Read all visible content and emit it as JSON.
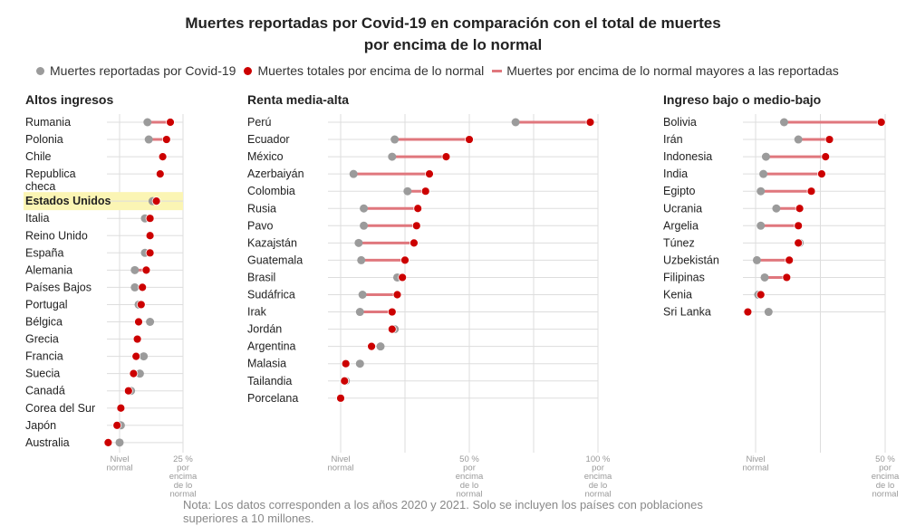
{
  "title_line1": "Muertes reportadas por Covid-19 en comparación con el total de muertes",
  "title_line2": "por encima de lo normal",
  "legend": {
    "reported": "Muertes reportadas por Covid-19",
    "excess": "Muertes totales por encima de lo normal",
    "gap": "Muertes por encima de lo normal mayores a las reportadas"
  },
  "colors": {
    "reported": "#9b9b9b",
    "excess": "#cc0000",
    "gap": "#e0777d",
    "grid": "#dddddd",
    "highlight": "#fbf5b4"
  },
  "note_line1": "Nota: Los datos corresponden a los años 2020 y 2021. Solo se incluyen los países con poblaciones",
  "note_line2": "superiores a 10 millones.",
  "chart_data": [
    {
      "type": "dot-plot",
      "title": "Altos ingresos",
      "unit": "% por encima de lo normal",
      "xlim": [
        -5,
        25
      ],
      "ticks": [
        {
          "value": 0,
          "label": "Nivel normal"
        },
        {
          "value": 25,
          "label": "25 % por encima de lo normal"
        }
      ],
      "highlight": "Estados Unidos",
      "rows": [
        {
          "country": "Rumania",
          "reported": 11,
          "excess": 20
        },
        {
          "country": "Polonia",
          "reported": 11.5,
          "excess": 18.5
        },
        {
          "country": "Chile",
          "reported": 17,
          "excess": 17
        },
        {
          "country": "Republica checa",
          "reported": 16,
          "excess": 16
        },
        {
          "country": "Estados Unidos",
          "reported": 13,
          "excess": 14.5
        },
        {
          "country": "Italia",
          "reported": 10,
          "excess": 12
        },
        {
          "country": "Reino Unido",
          "reported": 12,
          "excess": 12
        },
        {
          "country": "España",
          "reported": 10,
          "excess": 12
        },
        {
          "country": "Alemania",
          "reported": 6,
          "excess": 10.5
        },
        {
          "country": "Países Bajos",
          "reported": 6,
          "excess": 9
        },
        {
          "country": "Portugal",
          "reported": 7.5,
          "excess": 8.5
        },
        {
          "country": "Bélgica",
          "reported": 12,
          "excess": 7.5
        },
        {
          "country": "Grecia",
          "reported": 7,
          "excess": 7
        },
        {
          "country": "Francia",
          "reported": 9.5,
          "excess": 6.5
        },
        {
          "country": "Suecia",
          "reported": 8,
          "excess": 5.5
        },
        {
          "country": "Canadá",
          "reported": 4.5,
          "excess": 3.5
        },
        {
          "country": "Corea del Sur",
          "reported": 0.5,
          "excess": 0.5
        },
        {
          "country": "Japón",
          "reported": 0.5,
          "excess": -1
        },
        {
          "country": "Australia",
          "reported": 0,
          "excess": -4.5
        }
      ]
    },
    {
      "type": "dot-plot",
      "title": "Renta media-alta",
      "unit": "% por encima de lo normal",
      "xlim": [
        0,
        100
      ],
      "ticks": [
        {
          "value": 0,
          "label": "Nivel normal"
        },
        {
          "value": 50,
          "label": "50 % por encima de lo normal"
        },
        {
          "value": 100,
          "label": "100 % por encima de lo normal"
        }
      ],
      "rows": [
        {
          "country": "Perú",
          "reported": 68,
          "excess": 97
        },
        {
          "country": "Ecuador",
          "reported": 21,
          "excess": 50
        },
        {
          "country": "México",
          "reported": 20,
          "excess": 41
        },
        {
          "country": "Azerbaiyán",
          "reported": 5,
          "excess": 34.5
        },
        {
          "country": "Colombia",
          "reported": 26,
          "excess": 33
        },
        {
          "country": "Rusia",
          "reported": 9,
          "excess": 30
        },
        {
          "country": "Pavo",
          "reported": 9,
          "excess": 29.5
        },
        {
          "country": "Kazajstán",
          "reported": 7,
          "excess": 28.5
        },
        {
          "country": "Guatemala",
          "reported": 8,
          "excess": 25
        },
        {
          "country": "Brasil",
          "reported": 22,
          "excess": 24
        },
        {
          "country": "Sudáfrica",
          "reported": 8.5,
          "excess": 22
        },
        {
          "country": "Irak",
          "reported": 7.5,
          "excess": 20
        },
        {
          "country": "Jordán",
          "reported": 21,
          "excess": 20
        },
        {
          "country": "Argentina",
          "reported": 15.5,
          "excess": 12
        },
        {
          "country": "Malasia",
          "reported": 7.5,
          "excess": 2
        },
        {
          "country": "Tailandia",
          "reported": 2,
          "excess": 1.5
        },
        {
          "country": "Porcelana",
          "reported": 0,
          "excess": 0
        }
      ]
    },
    {
      "type": "dot-plot",
      "title": "Ingreso bajo o medio-bajo",
      "unit": "% por encima de lo normal",
      "xlim": [
        -5,
        50
      ],
      "ticks": [
        {
          "value": 0,
          "label": "Nivel normal"
        },
        {
          "value": 50,
          "label": "50 % por encima de lo normal"
        }
      ],
      "rows": [
        {
          "country": "Bolivia",
          "reported": 11,
          "excess": 48.5
        },
        {
          "country": "Irán",
          "reported": 16.5,
          "excess": 28.5
        },
        {
          "country": "Indonesia",
          "reported": 4,
          "excess": 27
        },
        {
          "country": "India",
          "reported": 3,
          "excess": 25.5
        },
        {
          "country": "Egipto",
          "reported": 2,
          "excess": 21.5
        },
        {
          "country": "Ucrania",
          "reported": 8,
          "excess": 17
        },
        {
          "country": "Argelia",
          "reported": 2,
          "excess": 16.5
        },
        {
          "country": "Túnez",
          "reported": 17,
          "excess": 16.5
        },
        {
          "country": "Uzbekistán",
          "reported": 0.5,
          "excess": 13
        },
        {
          "country": "Filipinas",
          "reported": 3.5,
          "excess": 12
        },
        {
          "country": "Kenia",
          "reported": 1,
          "excess": 2
        },
        {
          "country": "Sri Lanka",
          "reported": 5,
          "excess": -3
        }
      ]
    }
  ]
}
